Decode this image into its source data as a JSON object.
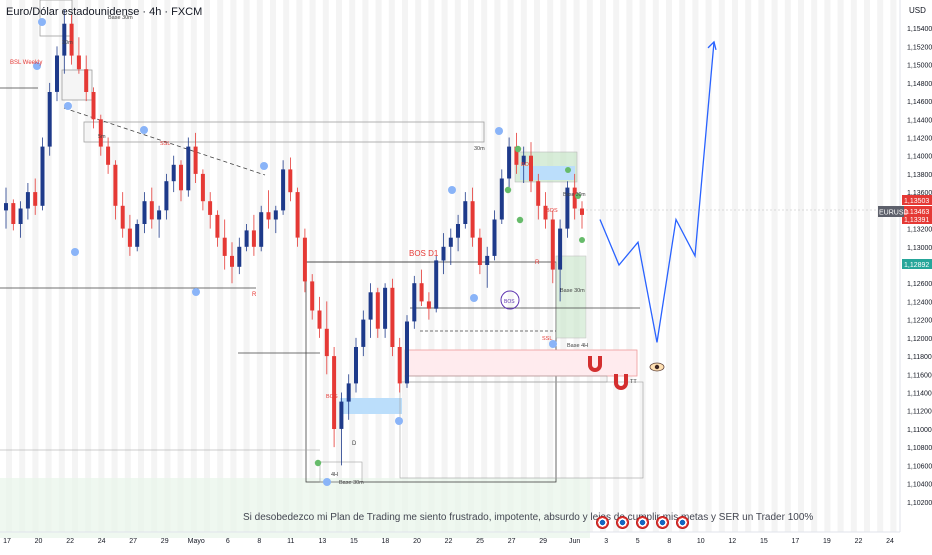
{
  "title": "Euro/Dólar estadounidense · 4h · FXCM",
  "symbol": "EURUSD",
  "currency": "USD",
  "footer": "Si desobedezco mi Plan de Trading me siento frustrado, impotente, absurdo y lejos de cumplir mis metas y SER un Trader 100%",
  "colors": {
    "bull": "#1e3a8a",
    "bear": "#e53935",
    "accent": "#2962ff",
    "zone": "#bbdefb"
  },
  "chart_data": {
    "type": "candlestick",
    "timeframe": "4h",
    "ylim": [
      1.1,
      1.156
    ],
    "y_ticks": [
      "1,15400",
      "1,15200",
      "1,15000",
      "1,14800",
      "1,14600",
      "1,14400",
      "1,14200",
      "1,14000",
      "1,13800",
      "1,13600",
      "1,13400",
      "1,13200",
      "1,13000",
      "1,12800",
      "1,12600",
      "1,12400",
      "1,12200",
      "1,12000",
      "1,11800",
      "1,11600",
      "1,11400",
      "1,11200",
      "1,11000",
      "1,10800",
      "1,10600",
      "1,10400",
      "1,10200"
    ],
    "x_ticks": [
      "17",
      "20",
      "22",
      "24",
      "27",
      "29",
      "Mayo",
      "6",
      "8",
      "11",
      "13",
      "15",
      "18",
      "20",
      "22",
      "25",
      "27",
      "29",
      "Jun",
      "3",
      "5",
      "8",
      "10",
      "12",
      "15",
      "17",
      "19",
      "22",
      "24"
    ],
    "price_badges": [
      {
        "text": "1,13503",
        "value": 1.13503,
        "color": "#e53935"
      },
      {
        "text": "1,13463",
        "value": 1.13463,
        "color": "#e53935"
      },
      {
        "text": "1,13391",
        "value": 1.13391,
        "color": "#e53935"
      },
      {
        "text": "1,12892",
        "value": 1.12892,
        "color": "#26a69a"
      }
    ],
    "annotations": [
      "BSL Weekly",
      "30m",
      "5m",
      "SSL",
      "Base 30m",
      "30m",
      "BOS D1",
      "BOS",
      "BOS",
      "BOS",
      "Base 30m",
      "Base 4H",
      "R",
      "R",
      "D",
      "4H",
      "Base 30m",
      "SSL",
      "BOS",
      "TT",
      "Base 30m"
    ],
    "candles": [
      [
        1.134,
        1.1365,
        1.132,
        1.1348
      ],
      [
        1.1348,
        1.1352,
        1.1318,
        1.1325
      ],
      [
        1.1325,
        1.135,
        1.131,
        1.1342
      ],
      [
        1.1342,
        1.137,
        1.133,
        1.136
      ],
      [
        1.136,
        1.1375,
        1.1335,
        1.1345
      ],
      [
        1.1345,
        1.142,
        1.134,
        1.141
      ],
      [
        1.141,
        1.148,
        1.14,
        1.147
      ],
      [
        1.147,
        1.152,
        1.146,
        1.151
      ],
      [
        1.151,
        1.156,
        1.149,
        1.1545
      ],
      [
        1.1545,
        1.1555,
        1.15,
        1.151
      ],
      [
        1.151,
        1.153,
        1.149,
        1.1495
      ],
      [
        1.1495,
        1.151,
        1.146,
        1.147
      ],
      [
        1.147,
        1.1475,
        1.143,
        1.144
      ],
      [
        1.144,
        1.1445,
        1.14,
        1.141
      ],
      [
        1.141,
        1.142,
        1.138,
        1.139
      ],
      [
        1.139,
        1.1395,
        1.133,
        1.1345
      ],
      [
        1.1345,
        1.136,
        1.131,
        1.132
      ],
      [
        1.132,
        1.1335,
        1.129,
        1.13
      ],
      [
        1.13,
        1.133,
        1.1295,
        1.1325
      ],
      [
        1.1325,
        1.136,
        1.1315,
        1.135
      ],
      [
        1.135,
        1.1365,
        1.132,
        1.133
      ],
      [
        1.133,
        1.1345,
        1.131,
        1.134
      ],
      [
        1.134,
        1.138,
        1.133,
        1.1372
      ],
      [
        1.1372,
        1.14,
        1.136,
        1.139
      ],
      [
        1.139,
        1.1395,
        1.135,
        1.1362
      ],
      [
        1.1362,
        1.142,
        1.1355,
        1.141
      ],
      [
        1.141,
        1.1425,
        1.137,
        1.138
      ],
      [
        1.138,
        1.1385,
        1.134,
        1.135
      ],
      [
        1.135,
        1.136,
        1.132,
        1.1335
      ],
      [
        1.1335,
        1.134,
        1.13,
        1.131
      ],
      [
        1.131,
        1.133,
        1.1275,
        1.129
      ],
      [
        1.129,
        1.1305,
        1.126,
        1.1278
      ],
      [
        1.1278,
        1.131,
        1.127,
        1.13
      ],
      [
        1.13,
        1.1325,
        1.1295,
        1.1318
      ],
      [
        1.1318,
        1.1335,
        1.129,
        1.13
      ],
      [
        1.13,
        1.1345,
        1.1295,
        1.1338
      ],
      [
        1.1338,
        1.1362,
        1.132,
        1.133
      ],
      [
        1.133,
        1.1345,
        1.1315,
        1.134
      ],
      [
        1.134,
        1.1395,
        1.1335,
        1.1385
      ],
      [
        1.1385,
        1.1398,
        1.135,
        1.136
      ],
      [
        1.136,
        1.1365,
        1.13,
        1.131
      ],
      [
        1.131,
        1.132,
        1.125,
        1.1262
      ],
      [
        1.1262,
        1.127,
        1.122,
        1.123
      ],
      [
        1.123,
        1.1245,
        1.12,
        1.121
      ],
      [
        1.121,
        1.124,
        1.116,
        1.118
      ],
      [
        1.118,
        1.119,
        1.108,
        1.11
      ],
      [
        1.11,
        1.114,
        1.106,
        1.113
      ],
      [
        1.113,
        1.116,
        1.111,
        1.115
      ],
      [
        1.115,
        1.12,
        1.114,
        1.119
      ],
      [
        1.119,
        1.123,
        1.118,
        1.122
      ],
      [
        1.122,
        1.126,
        1.12,
        1.125
      ],
      [
        1.125,
        1.1255,
        1.12,
        1.121
      ],
      [
        1.121,
        1.126,
        1.12,
        1.1255
      ],
      [
        1.1255,
        1.1265,
        1.118,
        1.119
      ],
      [
        1.119,
        1.12,
        1.114,
        1.115
      ],
      [
        1.115,
        1.1225,
        1.1145,
        1.1218
      ],
      [
        1.1218,
        1.1268,
        1.121,
        1.126
      ],
      [
        1.126,
        1.1275,
        1.1235,
        1.124
      ],
      [
        1.124,
        1.125,
        1.122,
        1.1232
      ],
      [
        1.1232,
        1.129,
        1.1228,
        1.1285
      ],
      [
        1.1285,
        1.1315,
        1.127,
        1.13
      ],
      [
        1.13,
        1.132,
        1.128,
        1.131
      ],
      [
        1.131,
        1.1335,
        1.1295,
        1.1325
      ],
      [
        1.1325,
        1.136,
        1.132,
        1.135
      ],
      [
        1.135,
        1.1365,
        1.13,
        1.131
      ],
      [
        1.131,
        1.132,
        1.127,
        1.128
      ],
      [
        1.128,
        1.13,
        1.1255,
        1.129
      ],
      [
        1.129,
        1.134,
        1.1285,
        1.133
      ],
      [
        1.133,
        1.1385,
        1.1325,
        1.1375
      ],
      [
        1.1375,
        1.142,
        1.136,
        1.141
      ],
      [
        1.141,
        1.1425,
        1.138,
        1.139
      ],
      [
        1.139,
        1.141,
        1.137,
        1.14
      ],
      [
        1.14,
        1.1415,
        1.136,
        1.1372
      ],
      [
        1.1372,
        1.138,
        1.133,
        1.1345
      ],
      [
        1.1345,
        1.136,
        1.132,
        1.133
      ],
      [
        1.133,
        1.134,
        1.126,
        1.1275
      ],
      [
        1.1275,
        1.133,
        1.124,
        1.132
      ],
      [
        1.132,
        1.1372,
        1.131,
        1.1365
      ],
      [
        1.1365,
        1.138,
        1.133,
        1.1342
      ],
      [
        1.1342,
        1.135,
        1.132,
        1.1335
      ]
    ],
    "projection": [
      [
        1.133,
        0
      ],
      [
        1.128,
        1
      ],
      [
        1.1305,
        2
      ],
      [
        1.1195,
        3
      ],
      [
        1.133,
        4
      ],
      [
        1.129,
        5
      ],
      [
        1.1525,
        6
      ]
    ]
  }
}
